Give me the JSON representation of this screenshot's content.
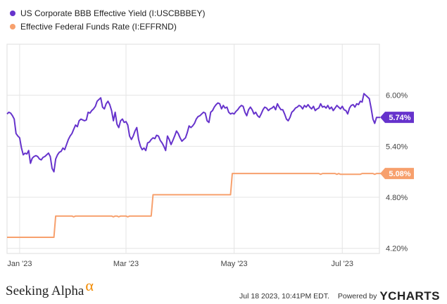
{
  "chart_data": {
    "type": "line",
    "x_ticks": [
      "Jan '23",
      "Mar '23",
      "May '23",
      "Jul '23"
    ],
    "y_ticks": [
      "6.00%",
      "5.40%",
      "4.80%",
      "4.20%"
    ],
    "ylim": [
      4.14,
      6.6
    ],
    "y_tick_values": [
      6.0,
      5.4,
      4.8,
      4.2
    ],
    "x_tick_index": [
      7,
      66,
      126,
      186
    ],
    "grid": true,
    "legend_position": "top-left",
    "series": [
      {
        "name": "US Corporate BBB Effective Yield (I:USCBBBEY)",
        "color": "#6633cc",
        "last_label": "5.74%",
        "values": [
          5.78,
          5.8,
          5.79,
          5.76,
          5.72,
          5.55,
          5.52,
          5.5,
          5.38,
          5.3,
          5.32,
          5.31,
          5.35,
          5.2,
          5.26,
          5.28,
          5.29,
          5.28,
          5.25,
          5.24,
          5.27,
          5.28,
          5.3,
          5.32,
          5.28,
          5.14,
          5.1,
          5.25,
          5.3,
          5.33,
          5.34,
          5.38,
          5.36,
          5.42,
          5.48,
          5.52,
          5.55,
          5.6,
          5.65,
          5.63,
          5.7,
          5.72,
          5.71,
          5.7,
          5.71,
          5.8,
          5.79,
          5.82,
          5.84,
          5.87,
          5.93,
          5.95,
          5.97,
          5.86,
          5.84,
          5.9,
          5.93,
          5.89,
          5.82,
          5.7,
          5.8,
          5.66,
          5.62,
          5.7,
          5.72,
          5.68,
          5.69,
          5.65,
          5.52,
          5.48,
          5.52,
          5.58,
          5.62,
          5.48,
          5.4,
          5.36,
          5.38,
          5.35,
          5.44,
          5.45,
          5.48,
          5.5,
          5.49,
          5.53,
          5.52,
          5.47,
          5.44,
          5.4,
          5.35,
          5.52,
          5.48,
          5.42,
          5.47,
          5.52,
          5.58,
          5.55,
          5.5,
          5.46,
          5.48,
          5.5,
          5.56,
          5.64,
          5.62,
          5.64,
          5.67,
          5.72,
          5.75,
          5.76,
          5.78,
          5.8,
          5.79,
          5.7,
          5.68,
          5.8,
          5.82,
          5.86,
          5.89,
          5.91,
          5.9,
          5.84,
          5.88,
          5.85,
          5.86,
          5.8,
          5.78,
          5.79,
          5.78,
          5.81,
          5.83,
          5.86,
          5.88,
          5.87,
          5.8,
          5.76,
          5.83,
          5.86,
          5.83,
          5.78,
          5.8,
          5.76,
          5.74,
          5.78,
          5.83,
          5.86,
          5.85,
          5.82,
          5.84,
          5.85,
          5.87,
          5.83,
          5.9,
          5.86,
          5.83,
          5.83,
          5.78,
          5.72,
          5.7,
          5.74,
          5.8,
          5.82,
          5.85,
          5.86,
          5.88,
          5.87,
          5.84,
          5.88,
          5.86,
          5.89,
          5.86,
          5.84,
          5.87,
          5.82,
          5.84,
          5.85,
          5.9,
          5.86,
          5.87,
          5.85,
          5.88,
          5.84,
          5.86,
          5.82,
          5.85,
          5.88,
          5.86,
          5.84,
          5.87,
          5.83,
          5.82,
          5.78,
          5.85,
          5.88,
          5.89,
          5.86,
          5.9,
          5.89,
          5.93,
          5.92,
          6.02,
          6.0,
          5.98,
          5.96,
          5.85,
          5.72,
          5.67,
          5.74,
          5.74,
          5.74
        ]
      },
      {
        "name": "Effective Federal Funds Rate (I:EFFRND)",
        "color": "#f7a06d",
        "last_label": "5.08%",
        "values": [
          4.33,
          4.33,
          4.33,
          4.33,
          4.33,
          4.33,
          4.33,
          4.33,
          4.33,
          4.33,
          4.33,
          4.33,
          4.33,
          4.33,
          4.33,
          4.33,
          4.33,
          4.33,
          4.33,
          4.33,
          4.33,
          4.33,
          4.33,
          4.33,
          4.33,
          4.33,
          4.33,
          4.58,
          4.58,
          4.58,
          4.58,
          4.58,
          4.58,
          4.58,
          4.58,
          4.58,
          4.58,
          4.57,
          4.58,
          4.58,
          4.58,
          4.58,
          4.58,
          4.58,
          4.58,
          4.58,
          4.58,
          4.58,
          4.58,
          4.58,
          4.58,
          4.58,
          4.58,
          4.58,
          4.58,
          4.58,
          4.58,
          4.58,
          4.58,
          4.57,
          4.58,
          4.58,
          4.57,
          4.58,
          4.58,
          4.58,
          4.58,
          4.57,
          4.58,
          4.58,
          4.58,
          4.58,
          4.58,
          4.58,
          4.58,
          4.58,
          4.58,
          4.58,
          4.58,
          4.58,
          4.58,
          4.83,
          4.83,
          4.83,
          4.83,
          4.83,
          4.83,
          4.83,
          4.83,
          4.83,
          4.83,
          4.83,
          4.83,
          4.83,
          4.83,
          4.83,
          4.83,
          4.83,
          4.83,
          4.83,
          4.83,
          4.83,
          4.83,
          4.83,
          4.83,
          4.83,
          4.83,
          4.83,
          4.83,
          4.83,
          4.83,
          4.83,
          4.83,
          4.83,
          4.83,
          4.83,
          4.83,
          4.83,
          4.83,
          4.83,
          4.83,
          4.83,
          4.83,
          4.83,
          4.83,
          5.08,
          5.08,
          5.08,
          5.08,
          5.08,
          5.08,
          5.08,
          5.08,
          5.08,
          5.08,
          5.08,
          5.08,
          5.08,
          5.08,
          5.08,
          5.08,
          5.08,
          5.08,
          5.08,
          5.08,
          5.08,
          5.08,
          5.08,
          5.08,
          5.08,
          5.08,
          5.08,
          5.08,
          5.08,
          5.08,
          5.08,
          5.08,
          5.08,
          5.08,
          5.08,
          5.08,
          5.08,
          5.08,
          5.08,
          5.08,
          5.08,
          5.08,
          5.08,
          5.08,
          5.08,
          5.08,
          5.08,
          5.08,
          5.08,
          5.07,
          5.08,
          5.08,
          5.08,
          5.08,
          5.08,
          5.08,
          5.08,
          5.08,
          5.07,
          5.08,
          5.07,
          5.07,
          5.07,
          5.07,
          5.07,
          5.07,
          5.07,
          5.07,
          5.07,
          5.07,
          5.07,
          5.07,
          5.08,
          5.08,
          5.08,
          5.08,
          5.08,
          5.08,
          5.08,
          5.07,
          5.08,
          5.08,
          5.08,
          5.08,
          5.08,
          5.08
        ]
      }
    ]
  },
  "footer": {
    "brand": "Seeking Alpha",
    "brand_mark": "α",
    "timestamp": "Jul 18 2023, 10:41PM EDT.",
    "powered_by": "Powered by",
    "provider": "YCHARTS"
  }
}
